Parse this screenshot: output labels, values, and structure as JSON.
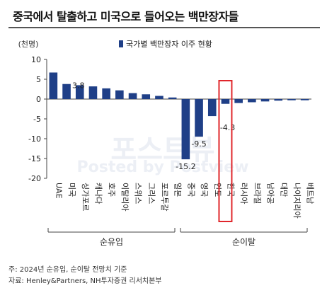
{
  "title": "중국에서 탈출하고 미국으로 들어오는 백만장자들",
  "source_note": "주: 2024년 순유입, 순이탈 전망치 기준",
  "source_credit": "자료: Henley&Partners, NH투자증권 리서치본부",
  "chart_data": {
    "type": "bar",
    "unit_label": "(천명)",
    "legend": "국가별 백만장자 이주 현황",
    "legend_position": "top",
    "categories": [
      "UAE",
      "미국",
      "싱가포르",
      "캐나다",
      "호주",
      "이탈리아",
      "스위스",
      "그리스",
      "포르투갈",
      "일본",
      "중국",
      "영국",
      "인도",
      "한국",
      "러시아",
      "브라질",
      "남아공",
      "대만",
      "나이지리아",
      "베트남"
    ],
    "values": [
      6.7,
      3.8,
      3.5,
      3.2,
      2.7,
      2.2,
      1.5,
      1.2,
      0.8,
      0.4,
      -15.2,
      -9.5,
      -4.3,
      -1.2,
      -1.0,
      -0.8,
      -0.6,
      -0.4,
      -0.3,
      -0.3
    ],
    "data_labels": [
      {
        "index": 1,
        "text": "3.8"
      },
      {
        "index": 10,
        "text": "-15.2"
      },
      {
        "index": 11,
        "text": "-9.5"
      },
      {
        "index": 12,
        "text": "-4.3"
      }
    ],
    "yticks": [
      10,
      5,
      0,
      -5,
      -10,
      -15,
      -20
    ],
    "ylim": [
      -20,
      10
    ],
    "grid": false,
    "bar_color": "#1f3f87",
    "highlight_index": 13,
    "highlight_color": "#e0262b",
    "groups": [
      {
        "label": "순유입",
        "from": 0,
        "to": 9
      },
      {
        "label": "순이탈",
        "from": 10,
        "to": 19
      }
    ],
    "watermark_lines": [
      "포스트뷰",
      "Posted by Postview"
    ]
  }
}
